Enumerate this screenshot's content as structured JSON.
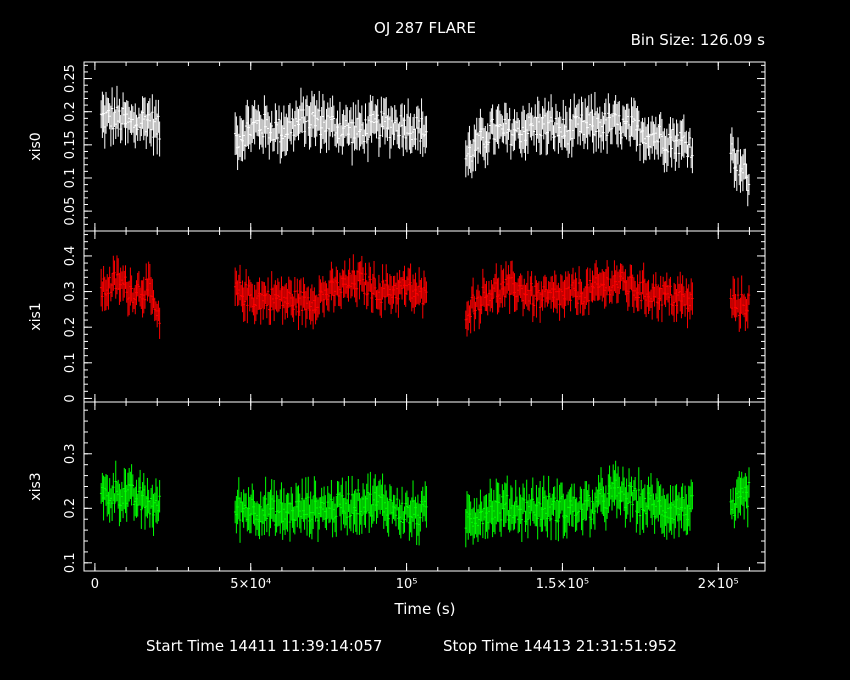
{
  "header": {
    "title": "OJ 287 FLARE",
    "bin_size": "Bin Size: 126.09 s"
  },
  "footer": {
    "start_time": "Start Time 14411 11:39:14:057",
    "stop_time": "Stop Time 14413 21:31:51:952"
  },
  "chart_data": {
    "type": "line",
    "xlabel": "Time (s)",
    "xlim": [
      -3500,
      215000
    ],
    "x_ticks": [
      {
        "value": 0,
        "label": "0"
      },
      {
        "value": 50000,
        "label": "5×10⁴"
      },
      {
        "value": 100000,
        "label": "10⁵"
      },
      {
        "value": 150000,
        "label": "1.5×10⁵"
      },
      {
        "value": 200000,
        "label": "2×10⁵"
      }
    ],
    "segments": [
      [
        2000,
        21000
      ],
      [
        45000,
        106500
      ],
      [
        119000,
        192000
      ],
      [
        204000,
        210000
      ]
    ],
    "panels": [
      {
        "name": "xis0",
        "ylabel": "xis0",
        "color": "#ffffff",
        "ylim": [
          0.02,
          0.275
        ],
        "y_ticks": [
          0.05,
          0.1,
          0.15,
          0.2,
          0.25
        ],
        "y_tick_labels": [
          "0.05",
          "0.1",
          "0.15",
          "0.2",
          "0.25"
        ],
        "label_major": [
          0.05,
          0.1,
          0.15,
          0.2,
          0.25
        ],
        "series": [
          {
            "x": [
              2000,
              7000,
              12000,
              17000,
              21000,
              45000,
              52000,
              60000,
              68000,
              76000,
              84000,
              92000,
              100000,
              106500,
              119000,
              127000,
              135000,
              143000,
              151000,
              159000,
              167000,
              175000,
              183000,
              192000,
              204000,
              207000,
              210000
            ],
            "y": [
              0.19,
              0.19,
              0.18,
              0.19,
              0.17,
              0.16,
              0.18,
              0.17,
              0.19,
              0.18,
              0.17,
              0.18,
              0.18,
              0.17,
              0.13,
              0.17,
              0.17,
              0.18,
              0.17,
              0.18,
              0.18,
              0.17,
              0.16,
              0.15,
              0.14,
              0.12,
              0.09
            ],
            "err": 0.025
          }
        ]
      },
      {
        "name": "xis1",
        "ylabel": "xis1",
        "color": "#ff0000",
        "ylim": [
          -0.01,
          0.47
        ],
        "y_ticks": [
          0,
          0.1,
          0.2,
          0.3,
          0.4
        ],
        "y_tick_labels": [
          "0",
          "0.1",
          "0.2",
          "0.3",
          "0.4"
        ],
        "series": [
          {
            "x": [
              2000,
              7000,
              12000,
              17000,
              21000,
              45000,
              52000,
              60000,
              68000,
              76000,
              84000,
              92000,
              100000,
              106500,
              119000,
              127000,
              135000,
              143000,
              151000,
              159000,
              167000,
              175000,
              183000,
              192000,
              204000,
              207000,
              210000
            ],
            "y": [
              0.3,
              0.33,
              0.3,
              0.31,
              0.2,
              0.3,
              0.28,
              0.28,
              0.27,
              0.3,
              0.33,
              0.3,
              0.31,
              0.28,
              0.25,
              0.3,
              0.31,
              0.28,
              0.29,
              0.3,
              0.33,
              0.3,
              0.29,
              0.27,
              0.27,
              0.26,
              0.27
            ],
            "err": 0.04
          }
        ]
      },
      {
        "name": "xis3",
        "ylabel": "xis3",
        "color": "#00ff00",
        "ylim": [
          0.085,
          0.395
        ],
        "y_ticks": [
          0.1,
          0.2,
          0.3
        ],
        "y_tick_labels": [
          "0.1",
          "0.2",
          "0.3"
        ],
        "series": [
          {
            "x": [
              2000,
              7000,
              12000,
              17000,
              21000,
              45000,
              52000,
              60000,
              68000,
              76000,
              84000,
              92000,
              100000,
              106500,
              119000,
              127000,
              135000,
              143000,
              151000,
              159000,
              167000,
              175000,
              183000,
              192000,
              204000,
              207000,
              210000
            ],
            "y": [
              0.22,
              0.23,
              0.22,
              0.21,
              0.2,
              0.2,
              0.2,
              0.19,
              0.2,
              0.2,
              0.21,
              0.21,
              0.19,
              0.19,
              0.18,
              0.2,
              0.2,
              0.2,
              0.2,
              0.2,
              0.23,
              0.21,
              0.2,
              0.2,
              0.19,
              0.21,
              0.23
            ],
            "err": 0.03
          }
        ]
      }
    ]
  }
}
